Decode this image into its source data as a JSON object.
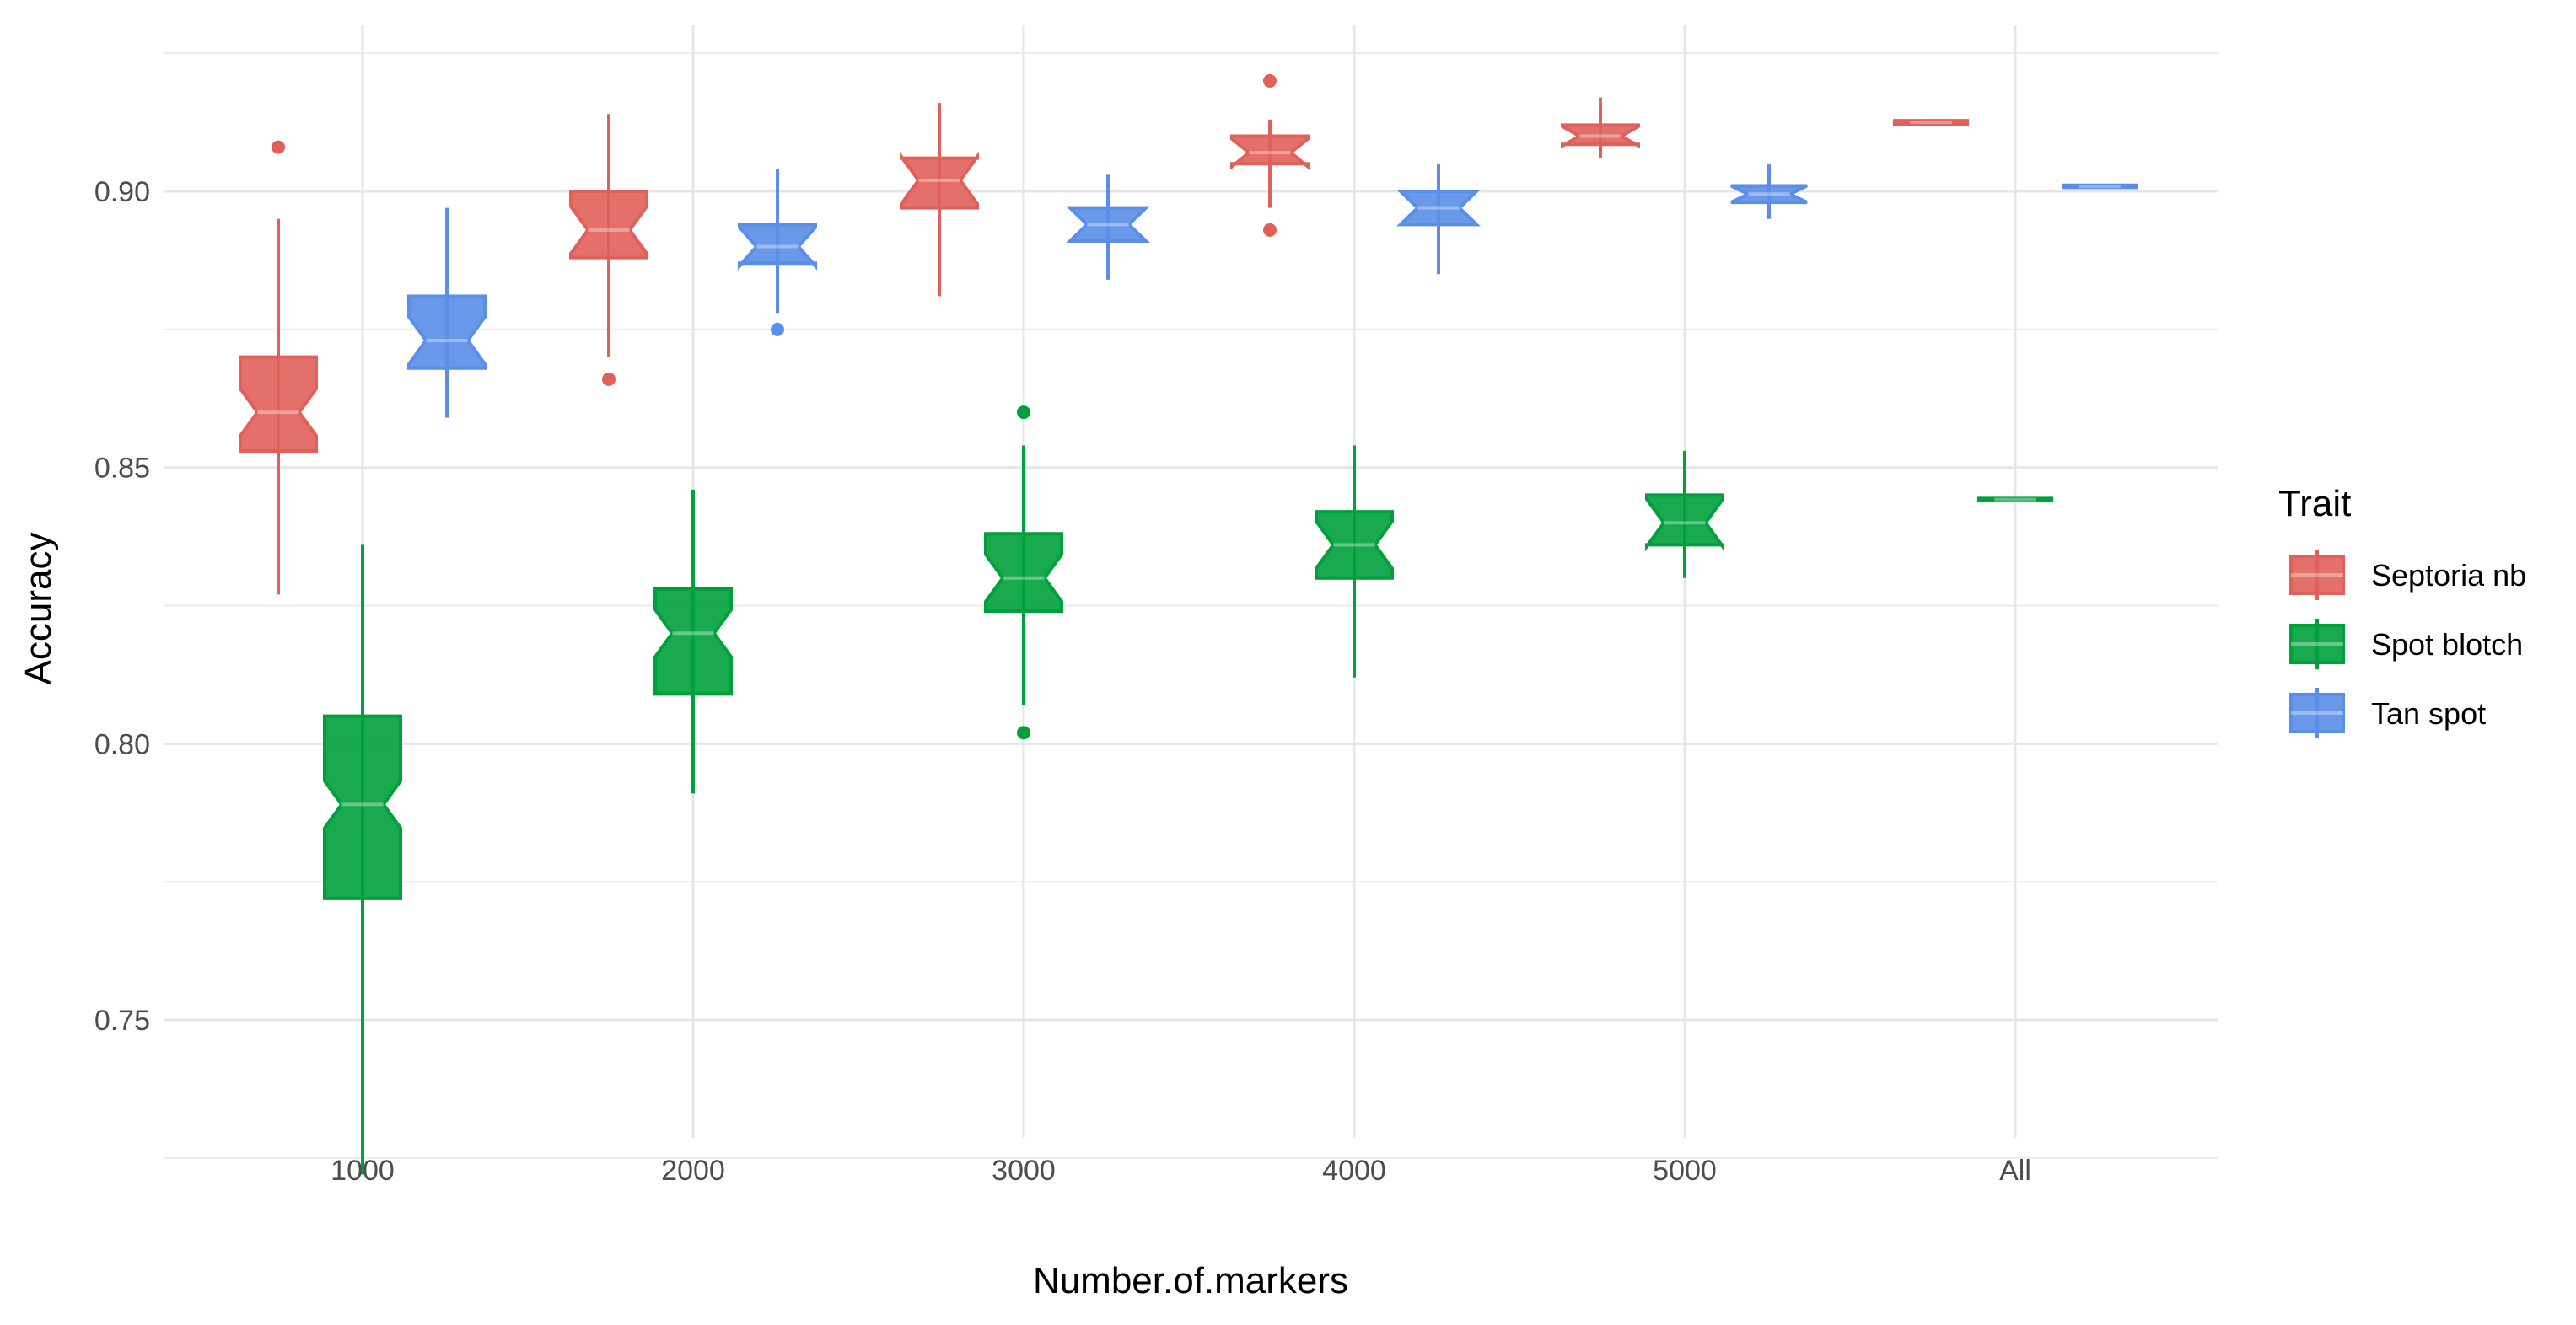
{
  "chart_data": {
    "type": "boxplot",
    "xlabel": "Number.of.markers",
    "ylabel": "Accuracy",
    "categories": [
      "1000",
      "2000",
      "3000",
      "4000",
      "5000",
      "All"
    ],
    "y_ticks": [
      "0.75",
      "0.80",
      "0.85",
      "0.90"
    ],
    "ylim": [
      0.72,
      0.925
    ],
    "grid": true,
    "notched": true,
    "legend": {
      "title": "Trait",
      "position": "right"
    },
    "series": [
      {
        "name": "Septoria nb",
        "color": "#E0605A",
        "boxes": [
          {
            "category": "1000",
            "min": 0.827,
            "q1": 0.853,
            "median": 0.86,
            "q3": 0.87,
            "max": 0.895,
            "outliers": [
              0.908
            ]
          },
          {
            "category": "2000",
            "min": 0.87,
            "q1": 0.888,
            "median": 0.893,
            "q3": 0.9,
            "max": 0.914,
            "outliers": [
              0.866
            ]
          },
          {
            "category": "3000",
            "min": 0.881,
            "q1": 0.897,
            "median": 0.902,
            "q3": 0.906,
            "max": 0.916,
            "outliers": []
          },
          {
            "category": "4000",
            "min": 0.897,
            "q1": 0.905,
            "median": 0.907,
            "q3": 0.91,
            "max": 0.913,
            "outliers": [
              0.92,
              0.893
            ]
          },
          {
            "category": "5000",
            "min": 0.906,
            "q1": 0.9085,
            "median": 0.91,
            "q3": 0.912,
            "max": 0.917,
            "outliers": []
          },
          {
            "category": "All",
            "min": 0.912,
            "q1": 0.9122,
            "median": 0.9125,
            "q3": 0.9128,
            "max": 0.913,
            "outliers": []
          }
        ]
      },
      {
        "name": "Spot blotch",
        "color": "#00A03C",
        "boxes": [
          {
            "category": "1000",
            "min": 0.722,
            "q1": 0.772,
            "median": 0.789,
            "q3": 0.805,
            "max": 0.836,
            "outliers": []
          },
          {
            "category": "2000",
            "min": 0.791,
            "q1": 0.809,
            "median": 0.82,
            "q3": 0.828,
            "max": 0.846,
            "outliers": []
          },
          {
            "category": "3000",
            "min": 0.807,
            "q1": 0.824,
            "median": 0.83,
            "q3": 0.838,
            "max": 0.854,
            "outliers": [
              0.86,
              0.802
            ]
          },
          {
            "category": "4000",
            "min": 0.812,
            "q1": 0.83,
            "median": 0.836,
            "q3": 0.842,
            "max": 0.854,
            "outliers": []
          },
          {
            "category": "5000",
            "min": 0.83,
            "q1": 0.836,
            "median": 0.84,
            "q3": 0.845,
            "max": 0.853,
            "outliers": []
          },
          {
            "category": "All",
            "min": 0.8438,
            "q1": 0.844,
            "median": 0.8442,
            "q3": 0.8444,
            "max": 0.8446,
            "outliers": []
          }
        ]
      },
      {
        "name": "Tan spot",
        "color": "#5A8EE8",
        "boxes": [
          {
            "category": "1000",
            "min": 0.859,
            "q1": 0.868,
            "median": 0.873,
            "q3": 0.881,
            "max": 0.897,
            "outliers": []
          },
          {
            "category": "2000",
            "min": 0.878,
            "q1": 0.887,
            "median": 0.89,
            "q3": 0.894,
            "max": 0.904,
            "outliers": [
              0.875
            ]
          },
          {
            "category": "3000",
            "min": 0.884,
            "q1": 0.891,
            "median": 0.894,
            "q3": 0.897,
            "max": 0.903,
            "outliers": []
          },
          {
            "category": "4000",
            "min": 0.885,
            "q1": 0.894,
            "median": 0.897,
            "q3": 0.9,
            "max": 0.905,
            "outliers": []
          },
          {
            "category": "5000",
            "min": 0.895,
            "q1": 0.898,
            "median": 0.8995,
            "q3": 0.901,
            "max": 0.905,
            "outliers": []
          },
          {
            "category": "All",
            "min": 0.9005,
            "q1": 0.9007,
            "median": 0.9009,
            "q3": 0.9011,
            "max": 0.9013,
            "outliers": []
          }
        ]
      }
    ]
  }
}
